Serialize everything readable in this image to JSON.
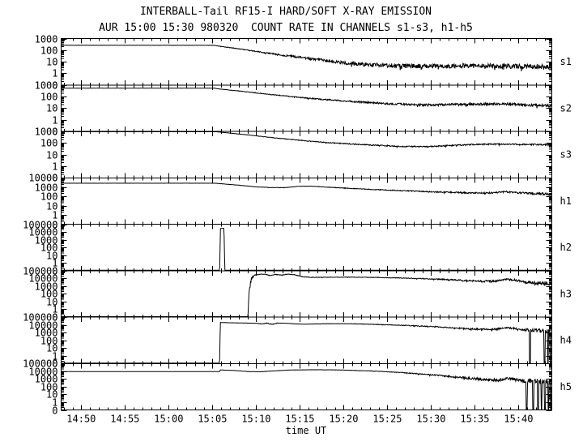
{
  "chart_data": {
    "type": "line",
    "title": "INTERBALL-Tail RF15-I HARD/SOFT X-RAY EMISSION",
    "subtitle": "AUR 15:00 15:30 980320  COUNT RATE IN CHANNELS s1-s3, h1-h5",
    "xlabel": "time UT",
    "colors": {
      "foreground": "#000000",
      "background": "#ffffff"
    },
    "x_axis": {
      "tick_labels": [
        "14:50",
        "14:55",
        "15:00",
        "15:05",
        "15:10",
        "15:15",
        "15:20",
        "15:25",
        "15:30",
        "15:35",
        "15:40"
      ],
      "tick_minutes": [
        0,
        5,
        10,
        15,
        20,
        25,
        30,
        35,
        40,
        45,
        50
      ],
      "minor_step_minutes": 1,
      "minutes_range": [
        -2.3,
        53.8
      ]
    },
    "panels": [
      {
        "id": "s1",
        "label": "s1",
        "ymax": 1000,
        "decades": 4,
        "ytick_labels": [
          "1000",
          "100",
          "10",
          "1",
          "0"
        ],
        "keypoints": [
          [
            -2.3,
            260,
            0.008
          ],
          [
            15.2,
            260,
            0.008
          ],
          [
            15.6,
            230,
            0.015
          ],
          [
            18,
            130,
            0.025
          ],
          [
            21,
            60,
            0.05
          ],
          [
            24,
            30,
            0.08
          ],
          [
            27,
            15,
            0.11
          ],
          [
            30,
            8,
            0.14
          ],
          [
            33,
            5.5,
            0.17
          ],
          [
            36,
            4.5,
            0.19
          ],
          [
            40,
            4,
            0.2
          ],
          [
            44,
            4.5,
            0.2
          ],
          [
            48,
            4,
            0.21
          ],
          [
            51,
            4,
            0.22
          ],
          [
            53.8,
            3.2,
            0.24
          ]
        ],
        "dropouts": []
      },
      {
        "id": "s2",
        "label": "s2",
        "ymax": 1000,
        "decades": 4,
        "ytick_labels": [
          "1000",
          "100",
          "10",
          "1",
          "0"
        ],
        "keypoints": [
          [
            -2.3,
            530,
            0.006
          ],
          [
            15.2,
            530,
            0.006
          ],
          [
            15.6,
            470,
            0.012
          ],
          [
            18,
            300,
            0.018
          ],
          [
            21,
            170,
            0.03
          ],
          [
            24,
            100,
            0.04
          ],
          [
            27,
            62,
            0.05
          ],
          [
            30,
            42,
            0.06
          ],
          [
            33,
            30,
            0.075
          ],
          [
            36,
            23,
            0.085
          ],
          [
            39,
            19,
            0.095
          ],
          [
            42,
            20,
            0.1
          ],
          [
            45,
            22,
            0.1
          ],
          [
            48,
            24,
            0.1
          ],
          [
            50.5,
            20,
            0.11
          ],
          [
            53.8,
            15,
            0.13
          ]
        ],
        "dropouts": []
      },
      {
        "id": "s3",
        "label": "s3",
        "ymax": 1000,
        "decades": 4,
        "ytick_labels": [
          "1000",
          "100",
          "10",
          "1",
          "0"
        ],
        "keypoints": [
          [
            -2.3,
            950,
            0.004
          ],
          [
            15.3,
            950,
            0.004
          ],
          [
            16,
            850,
            0.008
          ],
          [
            19,
            500,
            0.012
          ],
          [
            22,
            280,
            0.02
          ],
          [
            25,
            170,
            0.028
          ],
          [
            28,
            110,
            0.035
          ],
          [
            31,
            80,
            0.042
          ],
          [
            34,
            62,
            0.048
          ],
          [
            37,
            50,
            0.052
          ],
          [
            39.5,
            48,
            0.052
          ],
          [
            42,
            60,
            0.05
          ],
          [
            45,
            75,
            0.05
          ],
          [
            48,
            80,
            0.05
          ],
          [
            51,
            75,
            0.055
          ],
          [
            53.8,
            68,
            0.06
          ]
        ],
        "dropouts": []
      },
      {
        "id": "h1",
        "label": "h1",
        "ymax": 10000,
        "decades": 5,
        "ytick_labels": [
          "10000",
          "1000",
          "100",
          "10",
          "1",
          "0"
        ],
        "keypoints": [
          [
            -2.3,
            2600,
            0.004
          ],
          [
            15.2,
            2600,
            0.004
          ],
          [
            16,
            2300,
            0.008
          ],
          [
            18,
            1600,
            0.012
          ],
          [
            20,
            1050,
            0.016
          ],
          [
            22,
            870,
            0.018
          ],
          [
            23.5,
            900,
            0.018
          ],
          [
            25,
            1250,
            0.018
          ],
          [
            26.5,
            1230,
            0.02
          ],
          [
            28,
            1000,
            0.025
          ],
          [
            31,
            700,
            0.032
          ],
          [
            34,
            520,
            0.04
          ],
          [
            37,
            400,
            0.05
          ],
          [
            40,
            310,
            0.06
          ],
          [
            43,
            260,
            0.07
          ],
          [
            45.5,
            225,
            0.08
          ],
          [
            47,
            240,
            0.085
          ],
          [
            48.6,
            320,
            0.08
          ],
          [
            50,
            250,
            0.09
          ],
          [
            51.5,
            210,
            0.1
          ],
          [
            53.8,
            165,
            0.13
          ]
        ],
        "dropouts": []
      },
      {
        "id": "h2",
        "label": "h2",
        "ymax": 100000,
        "decades": 6,
        "ytick_labels": [
          "100000",
          "10000",
          "1000",
          "100",
          "10",
          "1",
          "0"
        ],
        "keypoints": [
          [
            -2.3,
            0.1,
            0
          ],
          [
            15.82,
            0.1,
            0
          ],
          [
            15.92,
            27000,
            0.01
          ],
          [
            16.32,
            30000,
            0.01
          ],
          [
            16.42,
            0.1,
            0
          ],
          [
            53.8,
            0.1,
            0
          ]
        ],
        "dropouts": []
      },
      {
        "id": "h3",
        "label": "h3",
        "ymax": 100000,
        "decades": 6,
        "ytick_labels": [
          "100000",
          "10000",
          "1000",
          "100",
          "10",
          "1",
          "0"
        ],
        "keypoints": [
          [
            -2.3,
            0.1,
            0
          ],
          [
            19.05,
            0.1,
            0
          ],
          [
            19.2,
            400,
            0.45
          ],
          [
            19.45,
            9000,
            0.3
          ],
          [
            19.8,
            28000,
            0.08
          ],
          [
            20.4,
            34000,
            0.035
          ],
          [
            21,
            35000,
            0.03
          ],
          [
            21.6,
            23000,
            0.04
          ],
          [
            22.2,
            32000,
            0.03
          ],
          [
            22.9,
            26000,
            0.035
          ],
          [
            23.6,
            36000,
            0.03
          ],
          [
            24.3,
            31000,
            0.03
          ],
          [
            25.2,
            17000,
            0.03
          ],
          [
            26.2,
            13500,
            0.025
          ],
          [
            28,
            14000,
            0.025
          ],
          [
            31,
            14500,
            0.025
          ],
          [
            34,
            13000,
            0.03
          ],
          [
            37,
            11000,
            0.04
          ],
          [
            40,
            8500,
            0.055
          ],
          [
            42.5,
            6500,
            0.075
          ],
          [
            44.5,
            5000,
            0.1
          ],
          [
            46,
            4200,
            0.13
          ],
          [
            47.3,
            4300,
            0.14
          ],
          [
            48.7,
            7500,
            0.1
          ],
          [
            49.6,
            6000,
            0.13
          ],
          [
            50.6,
            3500,
            0.18
          ],
          [
            51.8,
            2600,
            0.24
          ],
          [
            53.8,
            2000,
            0.32
          ]
        ],
        "dropouts": []
      },
      {
        "id": "h4",
        "label": "h4",
        "ymax": 100000,
        "decades": 6,
        "ytick_labels": [
          "100000",
          "10000",
          "1000",
          "100",
          "10",
          "1",
          "0"
        ],
        "keypoints": [
          [
            -2.3,
            0.1,
            0
          ],
          [
            15.82,
            0.1,
            0
          ],
          [
            15.9,
            20000,
            0.008
          ],
          [
            17,
            18500,
            0.01
          ],
          [
            18.5,
            17000,
            0.012
          ],
          [
            20,
            16000,
            0.02
          ],
          [
            20.7,
            12000,
            0.05
          ],
          [
            21.2,
            16500,
            0.03
          ],
          [
            21.8,
            11500,
            0.06
          ],
          [
            22.4,
            16500,
            0.03
          ],
          [
            23.2,
            16000,
            0.02
          ],
          [
            24.2,
            13500,
            0.02
          ],
          [
            25.5,
            12000,
            0.018
          ],
          [
            27.5,
            13500,
            0.018
          ],
          [
            30,
            14000,
            0.02
          ],
          [
            32.5,
            12500,
            0.025
          ],
          [
            35,
            10000,
            0.032
          ],
          [
            37.5,
            8000,
            0.042
          ],
          [
            40,
            6000,
            0.055
          ],
          [
            42,
            4500,
            0.07
          ],
          [
            44,
            3300,
            0.095
          ],
          [
            45.8,
            2600,
            0.12
          ],
          [
            47.3,
            2700,
            0.13
          ],
          [
            48.7,
            4300,
            0.1
          ],
          [
            49.8,
            3000,
            0.14
          ],
          [
            51,
            2200,
            0.18
          ],
          [
            52.3,
            1800,
            0.24
          ],
          [
            53.8,
            1600,
            0.3
          ]
        ],
        "dropouts": [
          [
            51.22,
            51.38
          ],
          [
            52.9,
            53.05
          ],
          [
            53.3,
            53.42
          ],
          [
            53.6,
            53.8
          ]
        ]
      },
      {
        "id": "h5",
        "label": "h5",
        "ymax": 100000,
        "decades": 6,
        "ytick_labels": [
          "100000",
          "10000",
          "1000",
          "100",
          "10",
          "1",
          "0"
        ],
        "keypoints": [
          [
            -2.3,
            9000,
            0.005
          ],
          [
            15.82,
            9000,
            0.005
          ],
          [
            15.9,
            14500,
            0.006
          ],
          [
            17.5,
            12500,
            0.008
          ],
          [
            19.3,
            8800,
            0.012
          ],
          [
            20.5,
            8600,
            0.013
          ],
          [
            22,
            11000,
            0.012
          ],
          [
            24,
            14500,
            0.01
          ],
          [
            26.5,
            15500,
            0.01
          ],
          [
            29,
            15000,
            0.012
          ],
          [
            31.5,
            12500,
            0.018
          ],
          [
            34,
            9800,
            0.026
          ],
          [
            36.5,
            6800,
            0.04
          ],
          [
            39,
            4300,
            0.06
          ],
          [
            41,
            2800,
            0.085
          ],
          [
            43,
            1700,
            0.12
          ],
          [
            45,
            1050,
            0.17
          ],
          [
            46.5,
            800,
            0.21
          ],
          [
            47.6,
            750,
            0.22
          ],
          [
            48.7,
            1250,
            0.16
          ],
          [
            49.8,
            750,
            0.24
          ],
          [
            51,
            550,
            0.28
          ],
          [
            52.3,
            480,
            0.32
          ],
          [
            53.8,
            420,
            0.36
          ]
        ],
        "dropouts": [
          [
            50.85,
            50.98
          ],
          [
            51.62,
            51.75
          ],
          [
            52.15,
            52.28
          ],
          [
            52.55,
            52.68
          ],
          [
            52.95,
            53.08
          ],
          [
            53.35,
            53.46
          ],
          [
            53.62,
            53.8
          ]
        ]
      }
    ]
  }
}
